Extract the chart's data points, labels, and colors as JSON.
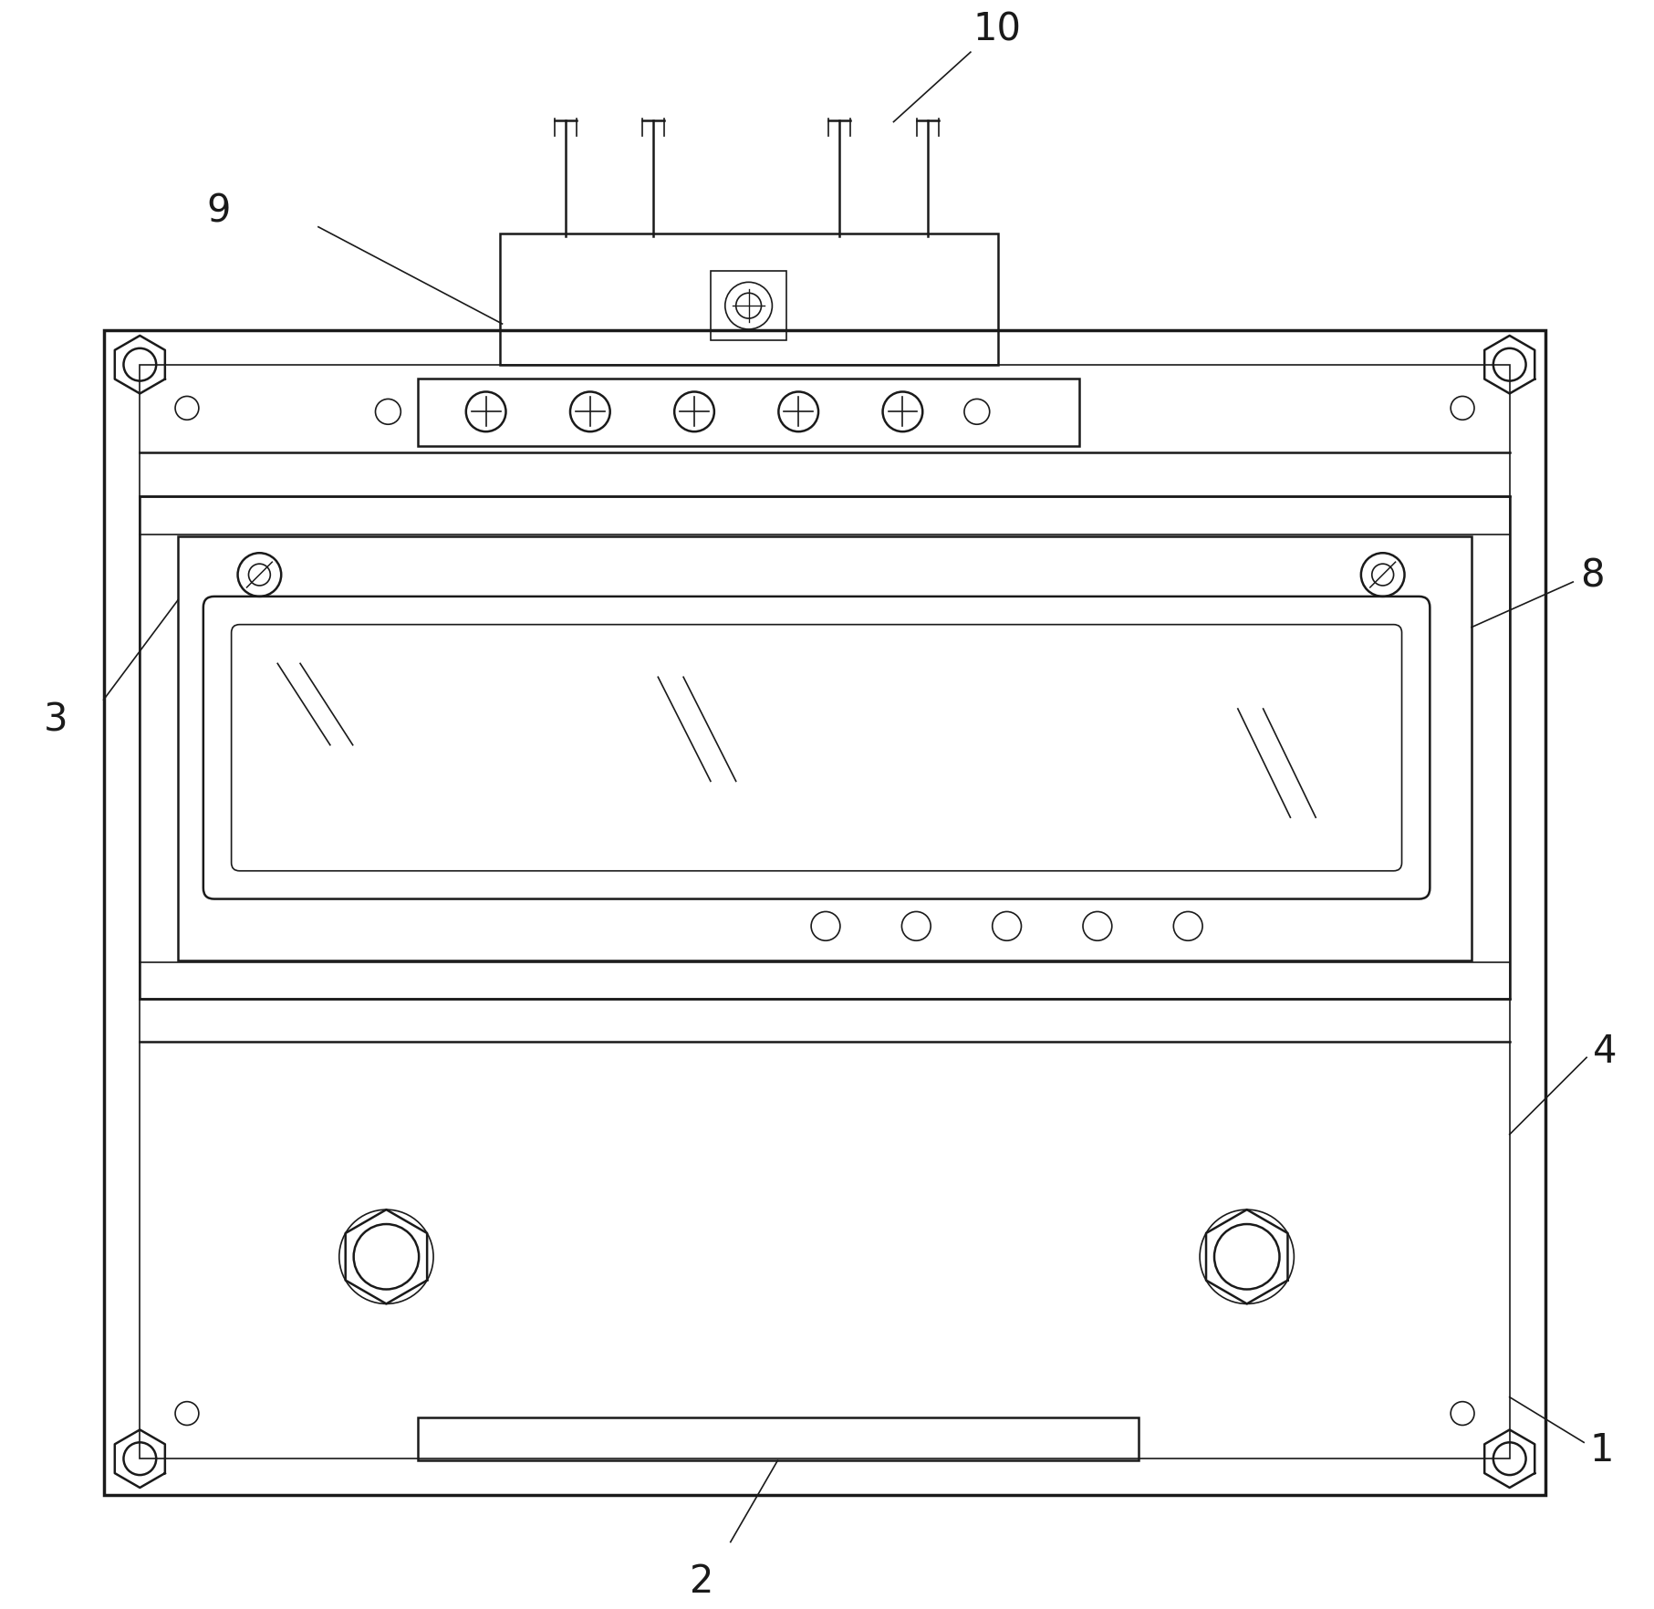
{
  "fig_width": 18.13,
  "fig_height": 17.65,
  "bg_color": "#ffffff",
  "line_color": "#1a1a1a",
  "lw_thick": 2.5,
  "lw_med": 1.8,
  "lw_thin": 1.2,
  "label_fontsize": 30
}
